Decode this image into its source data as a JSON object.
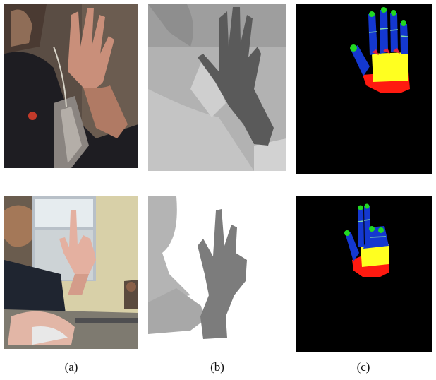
{
  "figure": {
    "captions": [
      "(a)",
      "(b)",
      "(c)"
    ]
  },
  "palette": {
    "background": "#ffffff",
    "segmentation_background": "#000000",
    "finger_segment": "#1438d0",
    "fingertip": "#22d822",
    "joint_line": "#7fd8a8",
    "palm_upper": "#ffff20",
    "palm_lower": "#ff1a10"
  }
}
